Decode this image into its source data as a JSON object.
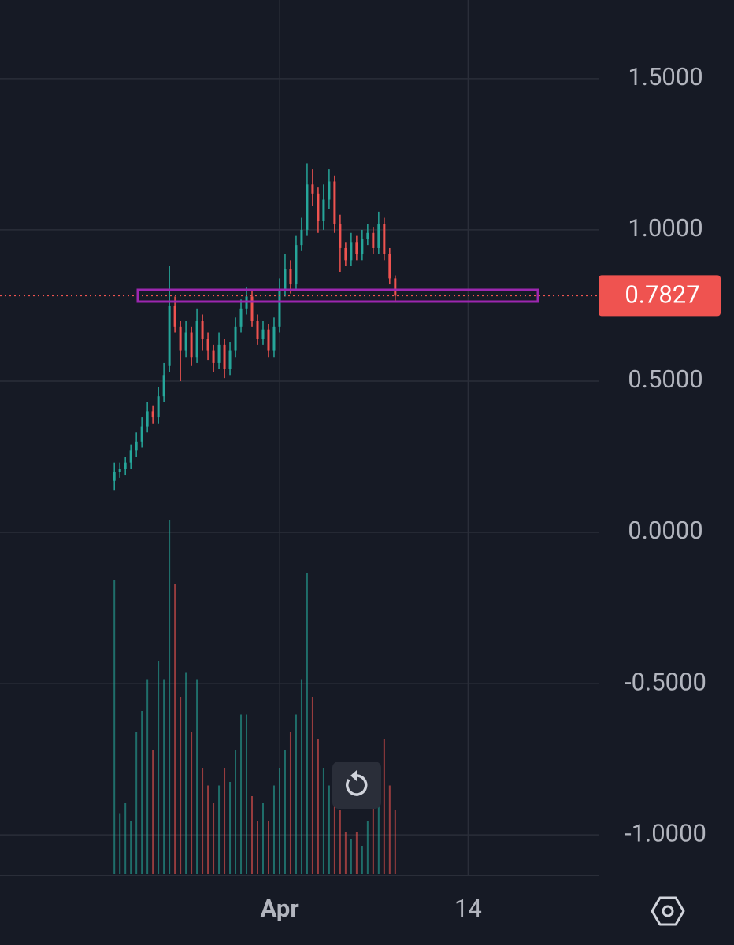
{
  "chart_data": {
    "type": "candlestick",
    "x": [
      -10.41,
      -10.03,
      -9.65,
      -9.27,
      -8.89,
      -8.51,
      -8.13,
      -7.75,
      -7.37,
      -6.99,
      -6.61,
      -6.23,
      -5.85,
      -5.47,
      -5.09,
      -4.71,
      -4.33,
      -3.95,
      -3.57,
      -3.19,
      -2.81,
      -2.43,
      -2.05,
      -1.67,
      -1.29,
      -0.91,
      -0.53,
      -0.15,
      0.23,
      0.61,
      0.99,
      1.37,
      1.75,
      2.13,
      2.51,
      2.89,
      3.27,
      3.65,
      4.03,
      4.41,
      4.79,
      5.17,
      5.55,
      5.93,
      6.31,
      6.69,
      7.07,
      7.45,
      7.83,
      8.21,
      8.59,
      8.97
    ],
    "open": [
      0.17,
      0.2,
      0.21,
      0.23,
      0.27,
      0.3,
      0.35,
      0.4,
      0.38,
      0.45,
      0.55,
      0.75,
      0.68,
      0.6,
      0.66,
      0.58,
      0.7,
      0.64,
      0.6,
      0.56,
      0.62,
      0.54,
      0.6,
      0.68,
      0.74,
      0.78,
      0.7,
      0.64,
      0.67,
      0.6,
      0.68,
      0.8,
      0.87,
      0.82,
      0.95,
      1.0,
      1.15,
      1.12,
      1.03,
      1.1,
      1.16,
      1.02,
      0.94,
      0.9,
      0.96,
      0.92,
      0.97,
      0.99,
      0.94,
      1.02,
      0.92,
      0.84
    ],
    "high": [
      0.23,
      0.23,
      0.25,
      0.29,
      0.33,
      0.38,
      0.43,
      0.42,
      0.48,
      0.56,
      0.88,
      0.78,
      0.7,
      0.7,
      0.68,
      0.74,
      0.72,
      0.66,
      0.62,
      0.66,
      0.64,
      0.63,
      0.71,
      0.77,
      0.81,
      0.8,
      0.72,
      0.7,
      0.69,
      0.71,
      0.84,
      0.92,
      0.9,
      0.98,
      1.04,
      1.22,
      1.2,
      1.14,
      1.15,
      1.2,
      1.18,
      1.05,
      0.96,
      0.99,
      0.98,
      1.0,
      1.02,
      1.01,
      1.06,
      1.04,
      0.94,
      0.85
    ],
    "low": [
      0.14,
      0.18,
      0.19,
      0.21,
      0.25,
      0.28,
      0.33,
      0.36,
      0.36,
      0.43,
      0.53,
      0.66,
      0.5,
      0.58,
      0.55,
      0.56,
      0.6,
      0.57,
      0.53,
      0.54,
      0.51,
      0.52,
      0.58,
      0.66,
      0.72,
      0.68,
      0.62,
      0.62,
      0.58,
      0.58,
      0.66,
      0.78,
      0.79,
      0.8,
      0.93,
      0.98,
      1.08,
      0.99,
      1.0,
      1.07,
      0.99,
      0.86,
      0.88,
      0.88,
      0.9,
      0.9,
      0.95,
      0.92,
      0.92,
      0.9,
      0.82,
      0.76
    ],
    "close": [
      0.2,
      0.21,
      0.23,
      0.27,
      0.3,
      0.35,
      0.4,
      0.38,
      0.45,
      0.52,
      0.75,
      0.68,
      0.6,
      0.66,
      0.58,
      0.7,
      0.64,
      0.6,
      0.56,
      0.62,
      0.54,
      0.6,
      0.68,
      0.74,
      0.78,
      0.7,
      0.64,
      0.67,
      0.6,
      0.68,
      0.8,
      0.87,
      0.82,
      0.95,
      1.0,
      1.15,
      1.12,
      1.03,
      1.1,
      1.16,
      1.02,
      0.94,
      0.9,
      0.96,
      0.92,
      0.97,
      0.99,
      0.94,
      1.02,
      0.92,
      0.84,
      0.7827
    ],
    "volume": [
      83,
      17,
      20,
      15,
      40,
      46,
      55,
      35,
      60,
      55,
      100,
      82,
      50,
      57,
      40,
      55,
      30,
      25,
      20,
      25,
      30,
      26,
      35,
      45,
      45,
      22,
      15,
      20,
      15,
      25,
      30,
      35,
      40,
      45,
      55,
      85,
      50,
      38,
      30,
      25,
      22,
      18,
      12,
      10,
      12,
      8,
      15,
      20,
      22,
      38,
      25,
      18
    ],
    "up_color": "#26a69a",
    "down_color": "#ef5350",
    "xlim": [
      -18.3,
      23.0
    ],
    "xticks": [
      {
        "value": 1,
        "label": "Apr"
      },
      14
    ],
    "ylim": [
      -1.135,
      1.76
    ],
    "yticks": [
      {
        "value": 1.5,
        "label": "1.5000"
      },
      {
        "value": 1.0,
        "label": "1.0000"
      },
      {
        "value": 0.5,
        "label": "0.5000"
      },
      {
        "value": 0,
        "label": "0.0000"
      },
      {
        "value": -0.5,
        "label": "-0.5000"
      },
      {
        "value": -1.0,
        "label": "-1.0000"
      }
    ],
    "grid": true
  }
}
